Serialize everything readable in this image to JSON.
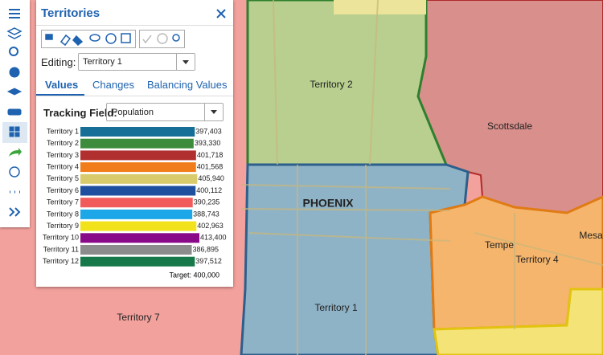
{
  "map": {
    "labels": [
      "Territory 2",
      "Scottsdale",
      "PHOENIX",
      "Tempe",
      "Territory 4",
      "Mesa",
      "Territory 1",
      "Territory 7"
    ]
  },
  "panel": {
    "title": "Territories",
    "editing_label": "Editing:",
    "editing_value": "Territory 1",
    "tabs": [
      "Values",
      "Changes",
      "Balancing Values"
    ],
    "tracking_label": "Tracking Field:",
    "tracking_value": "Population",
    "chart": {
      "categories": [
        "Territory 1",
        "Territory 2",
        "Territory 3",
        "Territory 4",
        "Territory 5",
        "Territory 6",
        "Territory 7",
        "Territory 8",
        "Territory 9",
        "Territory 10",
        "Territory 11",
        "Territory 12"
      ],
      "values": [
        397403,
        393330,
        401718,
        401568,
        405940,
        400112,
        390235,
        388743,
        402963,
        413400,
        386895,
        397512
      ],
      "value_labels": [
        "397,403",
        "393,330",
        "401,718",
        "401,568",
        "405,940",
        "400,112",
        "390,235",
        "388,743",
        "402,963",
        "413,400",
        "386,895",
        "397,512"
      ],
      "colors": [
        "#176f97",
        "#3d8b3d",
        "#b22f2f",
        "#f07d1a",
        "#d9ca6c",
        "#1e4f9e",
        "#f25b5b",
        "#1ea7e8",
        "#f2e21c",
        "#880a88",
        "#8c8c8c",
        "#17794a"
      ],
      "target": "Target: 400,000"
    }
  }
}
